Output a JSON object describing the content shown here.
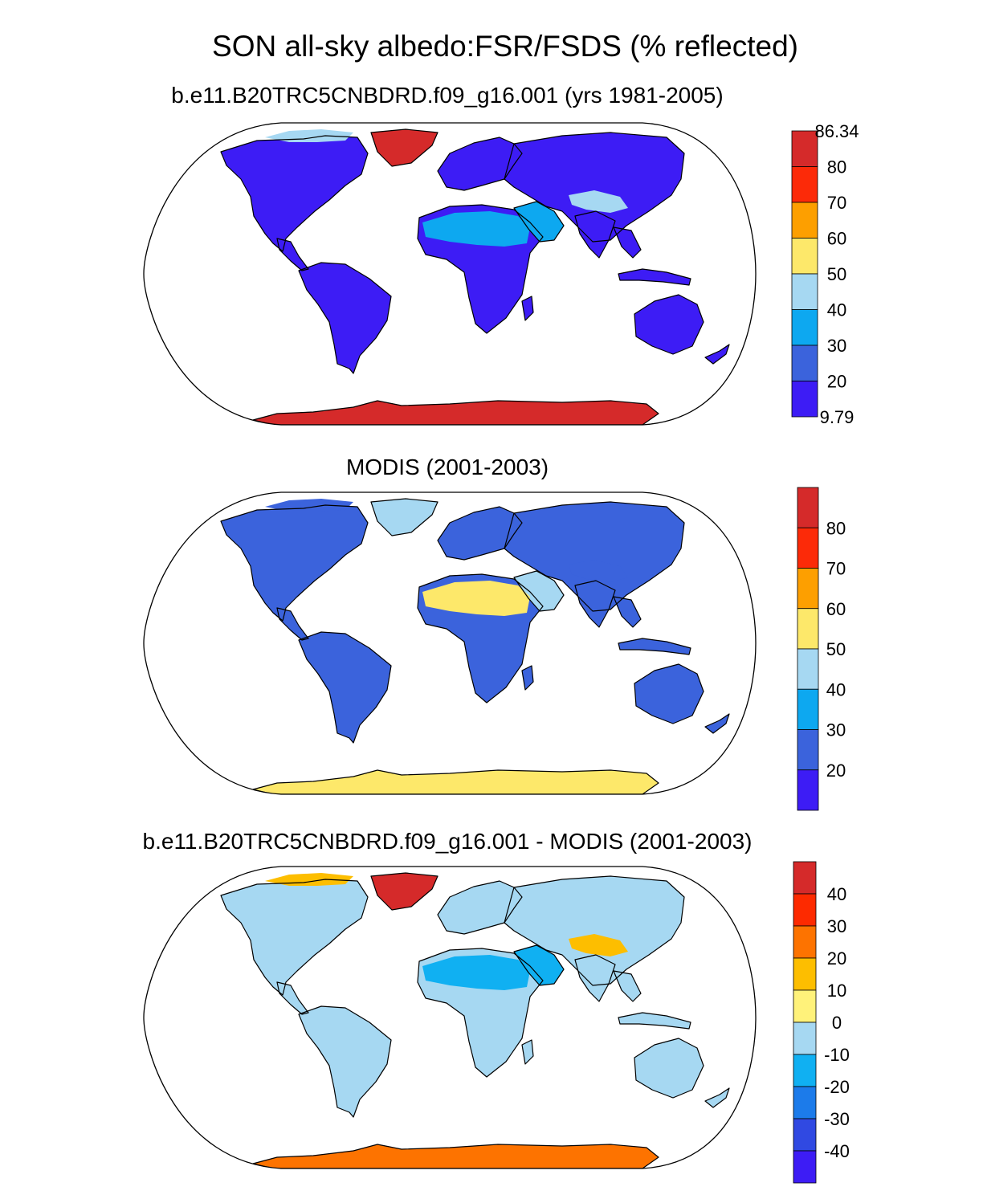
{
  "figure": {
    "title": "SON all-sky albedo:FSR/FSDS (% reflected)"
  },
  "palettes": {
    "albedo": [
      "#3d1cf5",
      "#3b63dc",
      "#0da8f0",
      "#a6d8f2",
      "#fde86a",
      "#fd9f00",
      "#fc2a08",
      "#d52a2a"
    ],
    "difference": [
      "#3d1cf5",
      "#3049e2",
      "#1c7bea",
      "#10b0f2",
      "#a6d8f2",
      "#fff27a",
      "#fdbe00",
      "#fd7300",
      "#fd2a00",
      "#d52a2a"
    ]
  },
  "land_color_index": {
    "model": {
      "default": 0,
      "greenland": 7,
      "antarctica": 7,
      "sahara": 2,
      "arabia": 2,
      "tibet": 3,
      "arctic_islands": 3
    },
    "modis": {
      "default": 1,
      "greenland": 3,
      "antarctica": 4,
      "sahara": 4,
      "arabia": 3,
      "tibet": 1,
      "arctic_islands": 1
    },
    "difference": {
      "default": 4,
      "greenland": 9,
      "antarctica": 7,
      "sahara": 3,
      "arabia": 3,
      "tibet": 6,
      "arctic_islands": 6
    }
  },
  "panels": [
    {
      "id": "model",
      "title": "b.e11.B20TRC5CNBDRD.f09_g16.001 (yrs 1981-2005)",
      "palette": "albedo",
      "colorbar_labels": [
        "86.34",
        "80",
        "70",
        "60",
        "50",
        "40",
        "30",
        "20",
        "9.79"
      ],
      "label_mode": "edges"
    },
    {
      "id": "modis",
      "title": "MODIS (2001-2003)",
      "palette": "albedo",
      "colorbar_labels": [
        "80",
        "70",
        "60",
        "50",
        "40",
        "30",
        "20"
      ],
      "label_mode": "interior"
    },
    {
      "id": "difference",
      "title": "b.e11.B20TRC5CNBDRD.f09_g16.001 - MODIS (2001-2003)",
      "palette": "difference",
      "colorbar_labels": [
        "40",
        "30",
        "20",
        "10",
        "0",
        "-10",
        "-20",
        "-30",
        "-40"
      ],
      "label_mode": "interior"
    }
  ]
}
